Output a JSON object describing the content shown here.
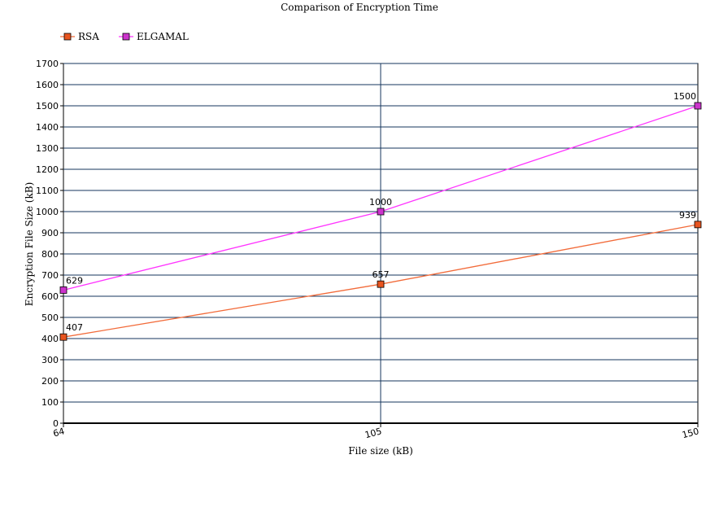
{
  "chart_data": {
    "type": "line",
    "title": "Comparison of Encryption Time",
    "xlabel": "File size (kB)",
    "ylabel": "Encryption File Size (kB)",
    "categories": [
      "64",
      "105",
      "150"
    ],
    "ylim": [
      0,
      1700
    ],
    "y_ticks": [
      0,
      100,
      200,
      300,
      400,
      500,
      600,
      700,
      800,
      900,
      1000,
      1100,
      1200,
      1300,
      1400,
      1500,
      1600,
      1700
    ],
    "grid": true,
    "legend_position": "top-left",
    "series": [
      {
        "name": "RSA",
        "values": [
          407,
          657,
          939
        ],
        "labels": [
          "407",
          "657",
          "939"
        ],
        "color": "#f26b3a",
        "marker_fill": "#e8541f"
      },
      {
        "name": "ELGAMAL",
        "values": [
          629,
          1000,
          1500
        ],
        "labels": [
          "629",
          "1000",
          "1500"
        ],
        "color": "#ff33ff",
        "marker_fill": "#cc33cc"
      }
    ]
  }
}
